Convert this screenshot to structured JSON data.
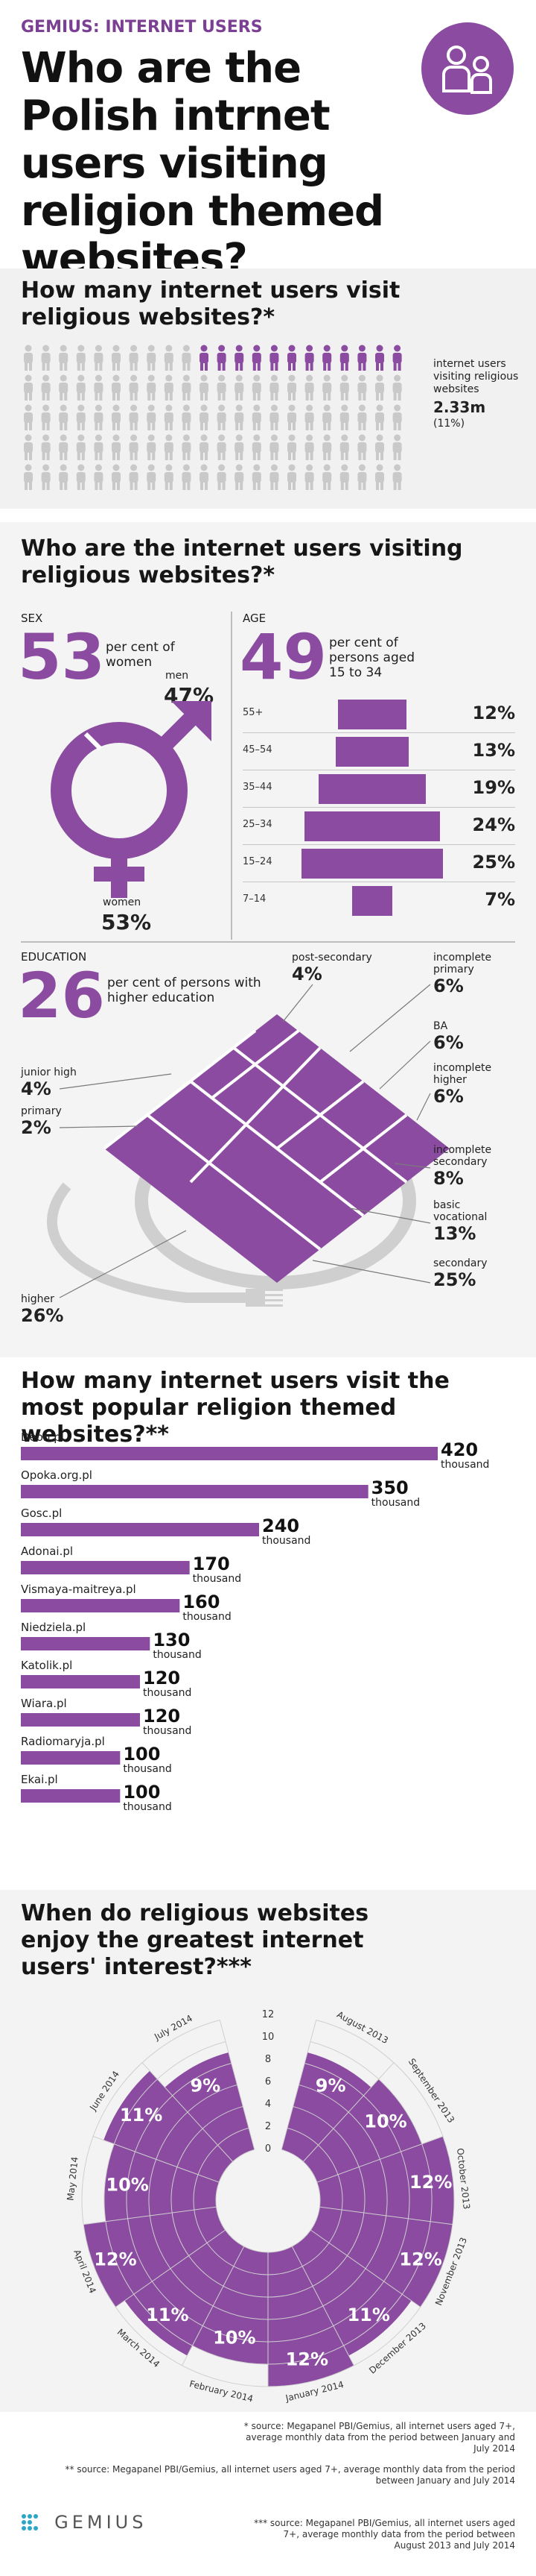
{
  "header": {
    "kicker": "GEMIUS: INTERNET USERS",
    "title": "Who are the Polish intrnet users visiting religion themed websites?",
    "icon": "users-icon",
    "accent_color": "#8a4ba0"
  },
  "section1": {
    "title": "How many internet users visit religious websites?*",
    "caption": "internet users visiting religious websites",
    "value": "2.33m",
    "share": "(11%)",
    "share_fraction": 0.11
  },
  "section2": {
    "title": "Who are the internet users visiting religious websites?*",
    "sex": {
      "heading": "SEX",
      "big": "53",
      "caption": "per cent of women",
      "men_label": "men",
      "men_pct": "47%",
      "women_label": "women",
      "women_pct": "53%"
    },
    "age": {
      "heading": "AGE",
      "big": "49",
      "caption": "per cent of persons aged 15 to 34",
      "rows": [
        {
          "label": "55+",
          "value": 12,
          "text": "12%"
        },
        {
          "label": "45–54",
          "value": 13,
          "text": "13%"
        },
        {
          "label": "35–44",
          "value": 19,
          "text": "19%"
        },
        {
          "label": "25–34",
          "value": 24,
          "text": "24%"
        },
        {
          "label": "15–24",
          "value": 25,
          "text": "25%"
        },
        {
          "label": "7–14",
          "value": 7,
          "text": "7%"
        }
      ]
    },
    "education": {
      "heading": "EDUCATION",
      "big": "26",
      "caption": "per cent of persons with higher education",
      "items": [
        {
          "label": "post-secondary",
          "text": "4%"
        },
        {
          "label": "incomplete primary",
          "text": "6%"
        },
        {
          "label": "junior high",
          "text": "4%"
        },
        {
          "label": "BA",
          "text": "6%"
        },
        {
          "label": "primary",
          "text": "2%"
        },
        {
          "label": "incomplete higher",
          "text": "6%"
        },
        {
          "label": "incomplete secondary",
          "text": "8%"
        },
        {
          "label": "basic vocational",
          "text": "13%"
        },
        {
          "label": "higher",
          "text": "26%"
        },
        {
          "label": "secondary",
          "text": "25%"
        }
      ]
    }
  },
  "section3": {
    "title": "How many internet users visit the most popular religion themed websites?**",
    "unit": "thousand",
    "chart_data": {
      "type": "bar",
      "categories": [
        "Deon.pl",
        "Opoka.org.pl",
        "Gosc.pl",
        "Adonai.pl",
        "Vismaya-maitreya.pl",
        "Niedziela.pl",
        "Katolik.pl",
        "Wiara.pl",
        "Radiomaryja.pl",
        "Ekai.pl"
      ],
      "values": [
        420,
        350,
        240,
        170,
        160,
        130,
        120,
        120,
        100,
        100
      ],
      "labels": [
        "420",
        "350",
        "240",
        "170",
        "160",
        "130",
        "120",
        "120",
        "100",
        "100"
      ]
    }
  },
  "section4": {
    "title": "When do religious websites enjoy the greatest  internet users' interest?***",
    "chart_data": {
      "type": "area",
      "categories": [
        "August 2013",
        "September 2013",
        "October 2013",
        "November 2013",
        "December 2013",
        "January 2014",
        "February 2014",
        "March 2014",
        "April 2014",
        "May 2014",
        "June 2014",
        "July 2014"
      ],
      "values": [
        9,
        10,
        12,
        12,
        11,
        12,
        10,
        11,
        12,
        10,
        11,
        9
      ],
      "labels": [
        "9%",
        "10%",
        "12%",
        "12%",
        "11%",
        "12%",
        "10%",
        "11%",
        "12%",
        "10%",
        "11%",
        "9%"
      ],
      "ticks": [
        "0",
        "2",
        "4",
        "6",
        "8",
        "10",
        "12"
      ],
      "ylim": [
        0,
        12
      ]
    }
  },
  "footer": {
    "note1": "* source: Megapanel PBI/Gemius, all internet users aged 7+, average monthly data from the period between January and July 2014",
    "note2": "** source: Megapanel PBI/Gemius, all internet users aged 7+, average monthly data from the period between January and July 2014",
    "note3": "*** source: Megapanel PBI/Gemius, all internet users aged 7+, average monthly data from the period between August 2013 and July 2014",
    "logo": "GEMIUS"
  }
}
